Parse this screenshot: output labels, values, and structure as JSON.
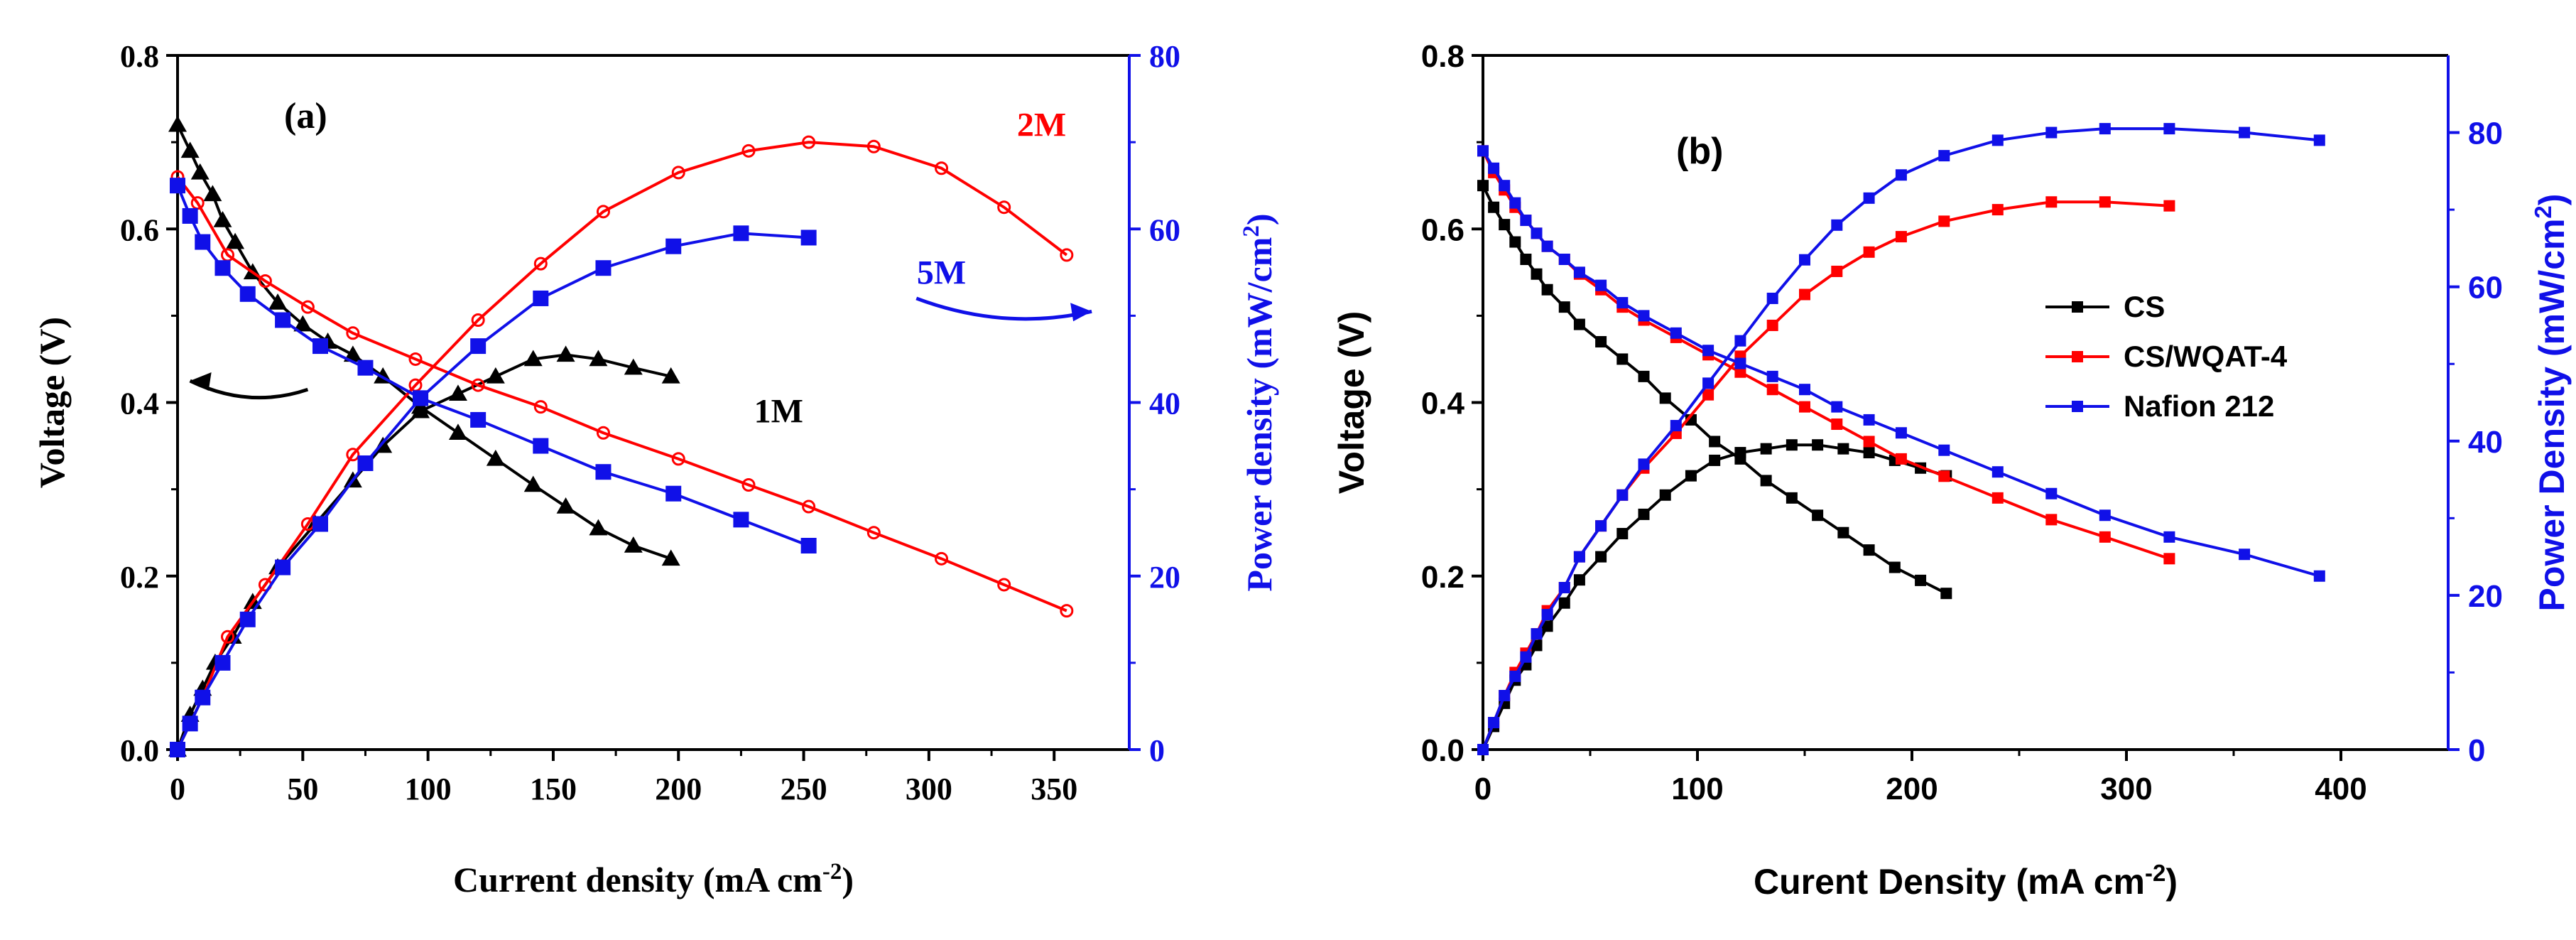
{
  "colors": {
    "black": "#000000",
    "red": "#ff0000",
    "blue": "#1010e8"
  },
  "chart_data": [
    {
      "type": "line",
      "panel_label": "(a)",
      "xlabel": "Current density (mA cm",
      "xlabel_sup": "-2",
      "xlabel_close": ")",
      "ylabel": "Voltage (V)",
      "y2label": "Power density (mW/cm",
      "y2label_sup": "2",
      "y2label_close": ")",
      "xlim": [
        0,
        380
      ],
      "ylim": [
        0,
        0.8
      ],
      "y2lim": [
        0,
        80
      ],
      "xticks": [
        0,
        50,
        100,
        150,
        200,
        250,
        300,
        350
      ],
      "xtick_labels": [
        "0",
        "50",
        "100",
        "150",
        "200",
        "250",
        "300",
        "350"
      ],
      "yticks": [
        0,
        0.2,
        0.4,
        0.6,
        0.8
      ],
      "ytick_labels": [
        "0.0",
        "0.2",
        "0.4",
        "0.6",
        "0.8"
      ],
      "y2ticks": [
        0,
        20,
        40,
        60,
        80
      ],
      "y2tick_labels": [
        "0",
        "20",
        "40",
        "60",
        "80"
      ],
      "annotations": [
        {
          "text": "2M",
          "color": "red",
          "x": 345,
          "y2": 72
        },
        {
          "text": "5M",
          "color": "blue",
          "x": 305,
          "y2": 55
        },
        {
          "text": "1M",
          "color": "black",
          "x": 240,
          "y2": 39
        }
      ],
      "arrows": [
        {
          "color": "black",
          "from": [
            52,
            0.415
          ],
          "to": [
            5,
            0.425
          ],
          "curve": "down"
        },
        {
          "color": "blue",
          "from": [
            295,
            0.52
          ],
          "to": [
            365,
            0.505
          ],
          "curve": "down"
        }
      ],
      "series": [
        {
          "name": "1M voltage",
          "axis": "left",
          "color": "black",
          "marker": "triangle",
          "x": [
            0,
            5,
            9,
            14,
            18,
            23,
            30,
            40,
            50,
            60,
            70,
            82,
            97,
            112,
            127,
            142,
            155,
            168,
            182,
            197
          ],
          "y": [
            0.72,
            0.69,
            0.665,
            0.64,
            0.61,
            0.585,
            0.55,
            0.515,
            0.49,
            0.47,
            0.455,
            0.43,
            0.395,
            0.365,
            0.335,
            0.305,
            0.28,
            0.255,
            0.235,
            0.22
          ]
        },
        {
          "name": "1M power",
          "axis": "right",
          "color": "black",
          "marker": "triangle",
          "x": [
            0,
            5,
            10,
            15,
            22,
            30,
            40,
            55,
            70,
            82,
            97,
            112,
            127,
            142,
            155,
            168,
            182,
            197
          ],
          "y": [
            0,
            4,
            7,
            10,
            13,
            17,
            21,
            26,
            31,
            35,
            39,
            41,
            43,
            45,
            45.5,
            45,
            44,
            43
          ]
        },
        {
          "name": "2M voltage",
          "axis": "left",
          "color": "red",
          "marker": "circle",
          "x": [
            0,
            8,
            20,
            35,
            52,
            70,
            95,
            120,
            145,
            170,
            200,
            228,
            252,
            278,
            305,
            330,
            355
          ],
          "y": [
            0.66,
            0.63,
            0.57,
            0.54,
            0.51,
            0.48,
            0.45,
            0.42,
            0.395,
            0.365,
            0.335,
            0.305,
            0.28,
            0.25,
            0.22,
            0.19,
            0.16
          ]
        },
        {
          "name": "2M power",
          "axis": "right",
          "color": "red",
          "marker": "circle",
          "x": [
            0,
            10,
            20,
            35,
            52,
            70,
            95,
            120,
            145,
            170,
            200,
            228,
            252,
            278,
            305,
            330,
            355
          ],
          "y": [
            0,
            6,
            13,
            19,
            26,
            34,
            42,
            49.5,
            56,
            62,
            66.5,
            69,
            70,
            69.5,
            67,
            62.5,
            57
          ]
        },
        {
          "name": "5M voltage",
          "axis": "left",
          "color": "blue",
          "marker": "square",
          "x": [
            0,
            5,
            10,
            18,
            28,
            42,
            57,
            75,
            97,
            120,
            145,
            170,
            198,
            225,
            252
          ],
          "y": [
            0.65,
            0.615,
            0.585,
            0.555,
            0.525,
            0.495,
            0.465,
            0.44,
            0.405,
            0.38,
            0.35,
            0.32,
            0.295,
            0.265,
            0.235
          ]
        },
        {
          "name": "5M power",
          "axis": "right",
          "color": "blue",
          "marker": "square",
          "x": [
            0,
            5,
            10,
            18,
            28,
            42,
            57,
            75,
            97,
            120,
            145,
            170,
            198,
            225,
            252
          ],
          "y": [
            0,
            3,
            6,
            10,
            15,
            21,
            26,
            33,
            40.5,
            46.5,
            52,
            55.5,
            58,
            59.5,
            59
          ]
        }
      ]
    },
    {
      "type": "line",
      "panel_label": "(b)",
      "xlabel": "Curent Density (mA cm",
      "xlabel_sup": "-2",
      "xlabel_close": ")",
      "ylabel": "Voltage (V)",
      "y2label": "Power Density (mW/cm",
      "y2label_sup": "2",
      "y2label_close": ")",
      "xlim": [
        0,
        450
      ],
      "ylim": [
        0,
        0.8
      ],
      "y2lim": [
        0,
        90
      ],
      "xticks": [
        0,
        100,
        200,
        300,
        400
      ],
      "xtick_labels": [
        "0",
        "100",
        "200",
        "300",
        "400"
      ],
      "yticks": [
        0,
        0.2,
        0.4,
        0.6,
        0.8
      ],
      "ytick_labels": [
        "0.0",
        "0.2",
        "0.4",
        "0.6",
        "0.8"
      ],
      "y2ticks": [
        0,
        20,
        40,
        60,
        80
      ],
      "y2tick_labels": [
        "0",
        "20",
        "40",
        "60",
        "80"
      ],
      "legend": {
        "placement": "center-right",
        "entries": [
          "CS",
          "CS/WQAT-4",
          "Nafion 212"
        ],
        "colors": [
          "black",
          "red",
          "blue"
        ]
      },
      "series": [
        {
          "name": "CS voltage",
          "axis": "left",
          "color": "black",
          "marker": "square",
          "x": [
            0,
            5,
            10,
            15,
            20,
            25,
            30,
            38,
            45,
            55,
            65,
            75,
            85,
            97,
            108,
            120,
            132,
            144,
            156,
            168,
            180,
            192,
            204,
            216
          ],
          "y": [
            0.65,
            0.625,
            0.605,
            0.585,
            0.565,
            0.548,
            0.53,
            0.51,
            0.49,
            0.47,
            0.45,
            0.43,
            0.405,
            0.38,
            0.355,
            0.335,
            0.31,
            0.29,
            0.27,
            0.25,
            0.23,
            0.21,
            0.195,
            0.18
          ]
        },
        {
          "name": "CS power",
          "axis": "right",
          "color": "black",
          "marker": "square",
          "x": [
            0,
            5,
            10,
            15,
            20,
            25,
            30,
            38,
            45,
            55,
            65,
            75,
            85,
            97,
            108,
            120,
            132,
            144,
            156,
            168,
            180,
            192,
            204,
            216
          ],
          "y": [
            0,
            3,
            6,
            9,
            11,
            13.5,
            16,
            19,
            22,
            25,
            28,
            30.5,
            33,
            35.5,
            37.5,
            38.5,
            39,
            39.5,
            39.5,
            39,
            38.5,
            37.5,
            36.5,
            35.5
          ]
        },
        {
          "name": "CS/WQAT-4 voltage",
          "axis": "left",
          "color": "red",
          "marker": "square",
          "x": [
            0,
            5,
            10,
            15,
            20,
            25,
            30,
            38,
            45,
            55,
            65,
            75,
            90,
            105,
            120,
            135,
            150,
            165,
            180,
            195,
            215,
            240,
            265,
            290,
            320
          ],
          "y": [
            0.69,
            0.665,
            0.645,
            0.625,
            0.61,
            0.595,
            0.58,
            0.565,
            0.548,
            0.53,
            0.51,
            0.495,
            0.475,
            0.455,
            0.435,
            0.415,
            0.395,
            0.375,
            0.355,
            0.335,
            0.315,
            0.29,
            0.265,
            0.245,
            0.22
          ]
        },
        {
          "name": "CS/WQAT-4 power",
          "axis": "right",
          "color": "red",
          "marker": "square",
          "x": [
            0,
            5,
            10,
            15,
            20,
            25,
            30,
            38,
            45,
            55,
            65,
            75,
            90,
            105,
            120,
            135,
            150,
            165,
            180,
            195,
            215,
            240,
            265,
            290,
            320
          ],
          "y": [
            0,
            3.5,
            7,
            10,
            12.5,
            15,
            18,
            21,
            25,
            29,
            33,
            36.5,
            41,
            46,
            51,
            55,
            59,
            62,
            64.5,
            66.5,
            68.5,
            70,
            71,
            71,
            70.5
          ]
        },
        {
          "name": "Nafion 212 voltage",
          "axis": "left",
          "color": "blue",
          "marker": "square",
          "x": [
            0,
            5,
            10,
            15,
            20,
            25,
            30,
            38,
            45,
            55,
            65,
            75,
            90,
            105,
            120,
            135,
            150,
            165,
            180,
            195,
            215,
            240,
            265,
            290,
            320,
            355,
            390
          ],
          "y": [
            0.69,
            0.67,
            0.65,
            0.63,
            0.61,
            0.595,
            0.58,
            0.565,
            0.55,
            0.535,
            0.515,
            0.5,
            0.48,
            0.46,
            0.445,
            0.43,
            0.415,
            0.395,
            0.38,
            0.365,
            0.345,
            0.32,
            0.295,
            0.27,
            0.245,
            0.225,
            0.2
          ]
        },
        {
          "name": "Nafion 212 power",
          "axis": "right",
          "color": "blue",
          "marker": "square",
          "x": [
            0,
            5,
            10,
            15,
            20,
            25,
            30,
            38,
            45,
            55,
            65,
            75,
            90,
            105,
            120,
            135,
            150,
            165,
            180,
            195,
            215,
            240,
            265,
            290,
            320,
            355,
            390
          ],
          "y": [
            0,
            3.5,
            7,
            9.5,
            12,
            15,
            17.5,
            21,
            25,
            29,
            33,
            37,
            42,
            47.5,
            53,
            58.5,
            63.5,
            68,
            71.5,
            74.5,
            77,
            79,
            80,
            80.5,
            80.5,
            80,
            79
          ]
        }
      ]
    }
  ]
}
